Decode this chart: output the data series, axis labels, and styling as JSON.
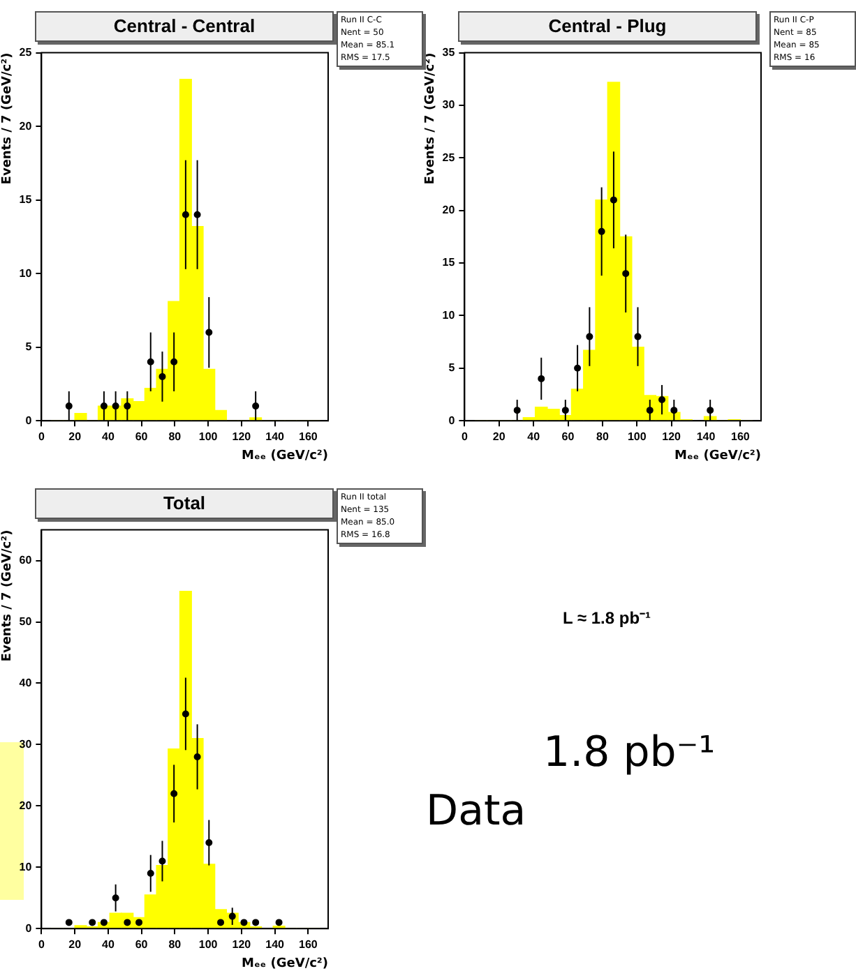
{
  "chart_data": [
    {
      "type": "histogram",
      "title": "Central - Central",
      "xlabel": "Mₑₑ (GeV/c²)",
      "ylabel": "Events / 7 (GeV/c²)",
      "annotations": [
        "Run II C-C",
        "Nent = 50",
        "Mean = 85.1",
        "RMS = 17.5"
      ],
      "xlim": [
        0,
        172
      ],
      "xticks": [
        0,
        20,
        40,
        60,
        80,
        100,
        120,
        140,
        160
      ],
      "ylim": [
        0,
        25
      ],
      "yticks": [
        0,
        5,
        10,
        15,
        20,
        25
      ],
      "marker": "circle",
      "bins": [
        6,
        13,
        20,
        27,
        34,
        41,
        48,
        55,
        62,
        69,
        76,
        83,
        90,
        97,
        104,
        111,
        118,
        125,
        132,
        139,
        146,
        153,
        160,
        167
      ],
      "series": [
        {
          "type": "histogram",
          "color": "#ffff00",
          "values": [
            0,
            0,
            0.5,
            0,
            1.0,
            1.0,
            1.5,
            1.3,
            2.2,
            3.5,
            8.1,
            23.2,
            13.2,
            3.5,
            0.7,
            0,
            0,
            0.2,
            0,
            0,
            0,
            0,
            0
          ]
        },
        {
          "type": "scatter",
          "color": "#000000",
          "x": [
            16.5,
            37.5,
            44.5,
            51.5,
            65.5,
            72.5,
            79.5,
            86.5,
            93.5,
            100.5,
            128.5
          ],
          "values": [
            1,
            1,
            1,
            1,
            4,
            3,
            4,
            14,
            14,
            6,
            1
          ],
          "errors": [
            1,
            1,
            1,
            1,
            2,
            1.7,
            2,
            3.7,
            3.7,
            2.4,
            1
          ]
        }
      ]
    },
    {
      "type": "histogram",
      "title": "Central - Plug",
      "xlabel": "Mₑₑ (GeV/c²)",
      "ylabel": "Events / 7 (GeV/c²)",
      "annotations": [
        "Run II C-P",
        "Nent = 85",
        "Mean = 85",
        "RMS = 16"
      ],
      "xlim": [
        0,
        172
      ],
      "xticks": [
        0,
        20,
        40,
        60,
        80,
        100,
        120,
        140,
        160
      ],
      "ylim": [
        0,
        35
      ],
      "yticks": [
        0,
        5,
        10,
        15,
        20,
        25,
        30,
        35
      ],
      "marker": "circle",
      "bins": [
        6,
        13,
        20,
        27,
        34,
        41,
        48,
        55,
        62,
        69,
        76,
        83,
        90,
        97,
        104,
        111,
        118,
        125,
        132,
        139,
        146,
        153,
        160,
        167
      ],
      "series": [
        {
          "type": "histogram",
          "color": "#ffff00",
          "values": [
            0,
            0,
            0,
            0,
            0.3,
            1.3,
            1.1,
            0.5,
            3.0,
            6.7,
            21,
            32.2,
            17.5,
            7.0,
            2.4,
            2.3,
            0.8,
            0.1,
            null,
            0.4,
            0,
            0.1,
            0
          ]
        },
        {
          "type": "scatter",
          "color": "#000000",
          "x": [
            30.5,
            44.5,
            58.5,
            65.5,
            72.5,
            79.5,
            86.5,
            93.5,
            100.5,
            107.5,
            114.5,
            121.5,
            142.5
          ],
          "values": [
            1,
            4,
            1,
            5,
            8,
            18,
            21,
            14,
            8,
            1,
            2,
            1,
            1
          ],
          "errors": [
            1,
            2,
            1,
            2.2,
            2.8,
            4.2,
            4.6,
            3.7,
            2.8,
            1,
            1.4,
            1,
            1
          ]
        }
      ]
    },
    {
      "type": "histogram",
      "title": "Total",
      "xlabel": "Mₑₑ (GeV/c²)",
      "ylabel": "Events / 7 (GeV/c²)",
      "annotations": [
        "Run II total",
        "Nent = 135",
        "Mean = 85.0",
        "RMS = 16.8"
      ],
      "xlim": [
        0,
        172
      ],
      "xticks": [
        0,
        20,
        40,
        60,
        80,
        100,
        120,
        140,
        160
      ],
      "ylim": [
        0,
        65
      ],
      "yticks": [
        0,
        10,
        20,
        30,
        40,
        50,
        60
      ],
      "marker": "circle",
      "bins": [
        6,
        13,
        20,
        27,
        34,
        41,
        48,
        55,
        62,
        69,
        76,
        83,
        90,
        97,
        104,
        111,
        118,
        125,
        132,
        139,
        146,
        153,
        160,
        167
      ],
      "series": [
        {
          "type": "histogram",
          "color": "#ffff00",
          "values": [
            0,
            0,
            0.5,
            0.3,
            1.0,
            2.5,
            2.5,
            1.8,
            5.5,
            10.3,
            29.3,
            55,
            31,
            10.5,
            3.1,
            2.5,
            1.0,
            0.3,
            null,
            0.4,
            0,
            0,
            0
          ]
        },
        {
          "type": "scatter",
          "color": "#000000",
          "x": [
            16.5,
            30.5,
            37.5,
            44.5,
            51.5,
            58.5,
            65.5,
            72.5,
            79.5,
            86.5,
            93.5,
            100.5,
            107.5,
            114.5,
            121.5,
            128.5,
            142.5
          ],
          "values": [
            1,
            1,
            1,
            5,
            1,
            1,
            9,
            11,
            22,
            35,
            28,
            14,
            1,
            2,
            1,
            1,
            1
          ],
          "errors": [
            null,
            null,
            null,
            2.2,
            null,
            null,
            3,
            3.3,
            4.7,
            5.9,
            5.3,
            3.7,
            null,
            1.4,
            null,
            null,
            null
          ]
        }
      ]
    },
    {
      "type": "other",
      "annotations": [
        "L ≈ 1.8 pb⁻¹",
        "1.8 pb⁻¹",
        "Data"
      ]
    }
  ]
}
